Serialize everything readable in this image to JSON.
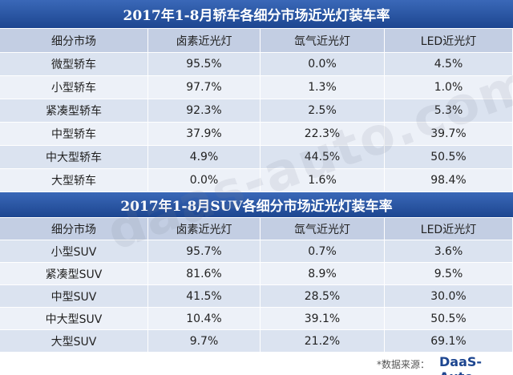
{
  "tables": [
    {
      "title": "2017年1-8月轿车各细分市场近光灯装车率",
      "header": [
        "细分市场",
        "卤素近光灯",
        "氙气近光灯",
        "LED近光灯"
      ],
      "rows": [
        [
          "微型轿车",
          "95.5%",
          "0.0%",
          "4.5%"
        ],
        [
          "小型轿车",
          "97.7%",
          "1.3%",
          "1.0%"
        ],
        [
          "紧凑型轿车",
          "92.3%",
          "2.5%",
          "5.3%"
        ],
        [
          "中型轿车",
          "37.9%",
          "22.3%",
          "39.7%"
        ],
        [
          "中大型轿车",
          "4.9%",
          "44.5%",
          "50.5%"
        ],
        [
          "大型轿车",
          "0.0%",
          "1.6%",
          "98.4%"
        ]
      ]
    },
    {
      "title": "2017年1-8月SUV各细分市场近光灯装车率",
      "header": [
        "细分市场",
        "卤素近光灯",
        "氙气近光灯",
        "LED近光灯"
      ],
      "rows": [
        [
          "小型SUV",
          "95.7%",
          "0.7%",
          "3.6%"
        ],
        [
          "紧凑型SUV",
          "81.6%",
          "8.9%",
          "9.5%"
        ],
        [
          "中型SUV",
          "41.5%",
          "28.5%",
          "30.0%"
        ],
        [
          "中大型SUV",
          "10.4%",
          "39.1%",
          "50.5%"
        ],
        [
          "大型SUV",
          "9.7%",
          "21.2%",
          "69.1%"
        ]
      ]
    }
  ],
  "watermark": "daas-auto.com",
  "footer": {
    "source": "*数据来源：",
    "logo": "DaaS-Auto"
  }
}
